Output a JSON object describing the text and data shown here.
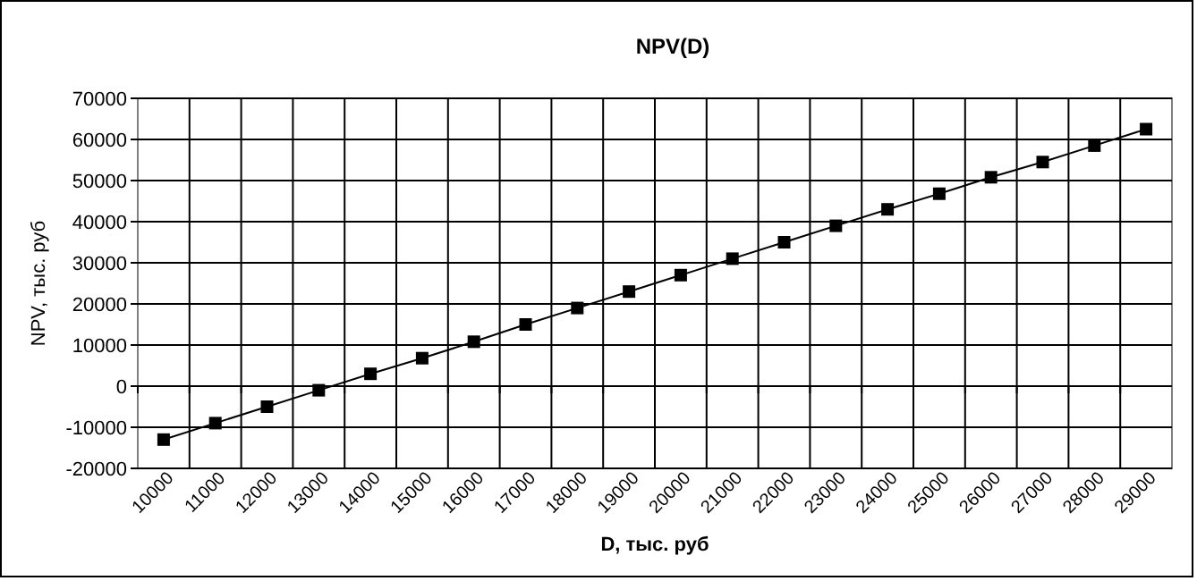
{
  "chart_data": {
    "type": "line",
    "title": "NPV(D)",
    "xlabel": "D, тыс. руб",
    "ylabel": "NPV, тыс. руб",
    "categories": [
      "10000",
      "11000",
      "12000",
      "13000",
      "14000",
      "15000",
      "16000",
      "17000",
      "18000",
      "19000",
      "20000",
      "21000",
      "22000",
      "23000",
      "24000",
      "25000",
      "26000",
      "27000",
      "28000",
      "29000"
    ],
    "series": [
      {
        "color": "#000000",
        "values": [
          -13000,
          -9000,
          -5000,
          -1000,
          3000,
          6800,
          10800,
          15000,
          19000,
          23000,
          27000,
          31000,
          35000,
          39000,
          43000,
          46800,
          50800,
          54500,
          58500,
          62500
        ]
      }
    ],
    "ylim": [
      -20000,
      70000
    ],
    "yticks": [
      -20000,
      -10000,
      0,
      10000,
      20000,
      30000,
      40000,
      50000,
      60000,
      70000
    ],
    "grid": true,
    "marker": "square",
    "line_style": "solid"
  }
}
